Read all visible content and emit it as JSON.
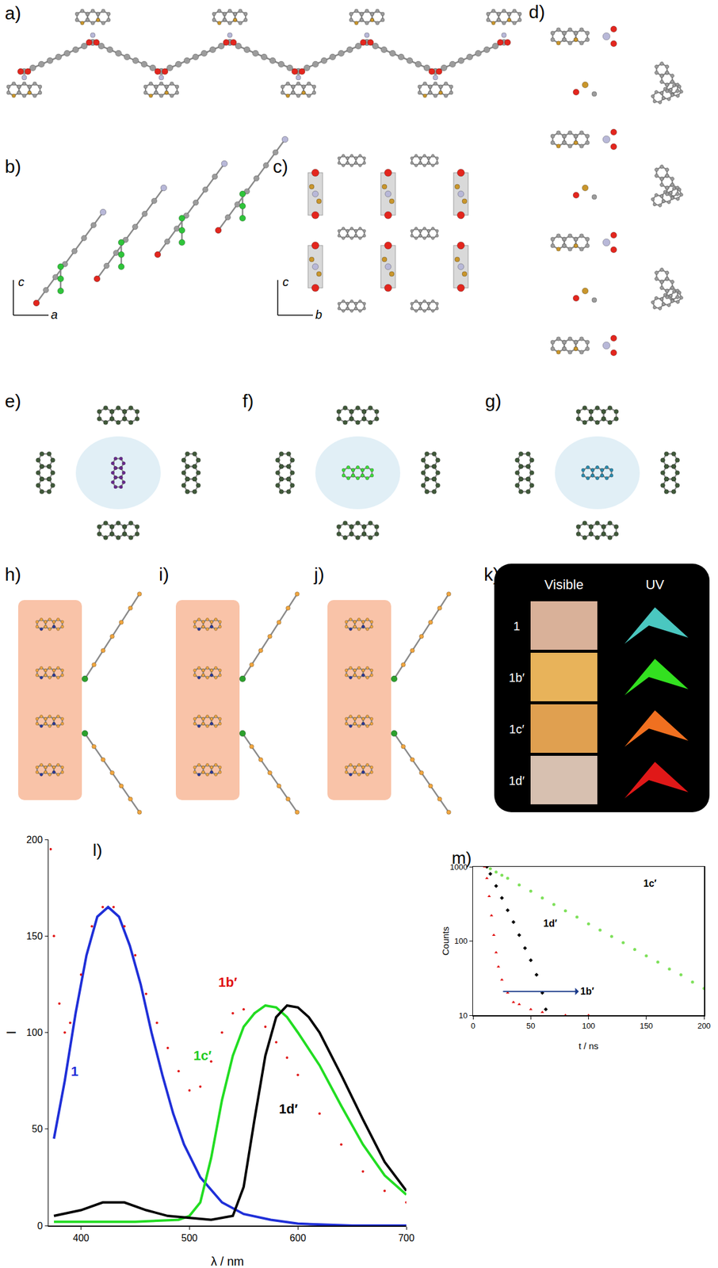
{
  "panels": {
    "labels": [
      "a)",
      "b)",
      "c)",
      "d)",
      "e)",
      "f)",
      "g)",
      "h)",
      "i)",
      "j)",
      "k)"
    ],
    "axes_b": [
      "c",
      "a"
    ],
    "axes_c": [
      "c",
      "b"
    ],
    "k": {
      "headers": [
        "Visible",
        "UV"
      ],
      "rows": [
        "1",
        "1b′",
        "1c′",
        "1d′"
      ]
    }
  },
  "chart_data": [
    {
      "type": "line",
      "title": "l)",
      "x_label": "λ / nm",
      "y_label": "I",
      "xlim": [
        370,
        700
      ],
      "xticks": [
        400,
        500,
        600,
        700
      ],
      "ylim": [
        0,
        200
      ],
      "yticks": [
        0,
        50,
        100,
        150,
        200
      ],
      "grid": false,
      "series": [
        {
          "name": "1",
          "color": "#1f2fd8",
          "line_style": "solid",
          "x": [
            375,
            385,
            395,
            405,
            415,
            425,
            435,
            445,
            455,
            465,
            475,
            485,
            495,
            510,
            530,
            550,
            575,
            600,
            650,
            700
          ],
          "values": [
            45,
            75,
            110,
            140,
            160,
            165,
            160,
            145,
            125,
            100,
            78,
            58,
            42,
            25,
            12,
            6,
            3,
            1,
            0,
            0
          ]
        },
        {
          "name": "1b′",
          "color": "#e01010",
          "marker": "circle",
          "x": [
            372,
            375,
            380,
            385,
            390,
            400,
            410,
            420,
            430,
            440,
            450,
            460,
            470,
            480,
            490,
            500,
            510,
            520,
            530,
            540,
            550,
            560,
            570,
            580,
            590,
            600,
            620,
            640,
            660,
            680,
            700
          ],
          "values": [
            195,
            150,
            115,
            100,
            105,
            130,
            155,
            165,
            165,
            155,
            140,
            120,
            105,
            92,
            80,
            70,
            72,
            85,
            100,
            110,
            112,
            110,
            103,
            95,
            87,
            78,
            58,
            42,
            28,
            18,
            12
          ]
        },
        {
          "name": "1c′",
          "color": "#22dd22",
          "line_style": "solid",
          "x": [
            375,
            400,
            450,
            490,
            500,
            510,
            520,
            530,
            540,
            550,
            560,
            570,
            580,
            590,
            600,
            620,
            640,
            660,
            680,
            700
          ],
          "values": [
            2,
            2,
            2,
            3,
            5,
            12,
            35,
            65,
            88,
            103,
            110,
            114,
            113,
            108,
            100,
            83,
            62,
            42,
            26,
            16
          ]
        },
        {
          "name": "1d′",
          "color": "#000000",
          "line_style": "solid",
          "x": [
            375,
            400,
            420,
            440,
            460,
            480,
            500,
            520,
            540,
            550,
            560,
            570,
            580,
            590,
            600,
            610,
            620,
            640,
            660,
            680,
            700
          ],
          "values": [
            5,
            8,
            12,
            12,
            8,
            5,
            4,
            3,
            5,
            20,
            55,
            88,
            108,
            114,
            113,
            108,
            100,
            78,
            55,
            33,
            18
          ]
        }
      ]
    },
    {
      "type": "scatter",
      "title": "m)",
      "x_label": "t / ns",
      "y_label": "Counts",
      "log": "y",
      "xlim": [
        0,
        200
      ],
      "xticks": [
        0,
        50,
        100,
        150,
        200
      ],
      "ylim": [
        10,
        1000
      ],
      "yticks": [
        10,
        100,
        1000
      ],
      "grid": false,
      "series": [
        {
          "name": "1c′",
          "color": "#7ee05a",
          "marker": "circle",
          "x": [
            12,
            15,
            20,
            25,
            30,
            40,
            50,
            60,
            70,
            80,
            90,
            100,
            110,
            120,
            130,
            140,
            150,
            160,
            170,
            180,
            190,
            200
          ],
          "values": [
            1000,
            940,
            850,
            770,
            700,
            570,
            470,
            380,
            310,
            255,
            210,
            170,
            140,
            115,
            95,
            77,
            63,
            52,
            42,
            35,
            28,
            23
          ]
        },
        {
          "name": "1d′",
          "color": "#000000",
          "marker": "diamond",
          "x": [
            12,
            15,
            20,
            25,
            30,
            35,
            40,
            45,
            50,
            55,
            60,
            63
          ],
          "values": [
            1000,
            800,
            550,
            380,
            260,
            180,
            120,
            80,
            55,
            35,
            20,
            12
          ]
        },
        {
          "name": "1b′",
          "color": "#e01010",
          "marker": "triangle-up",
          "x": [
            10,
            12,
            14,
            16,
            18,
            20,
            22,
            25,
            30,
            35,
            40,
            50,
            60,
            80,
            100
          ],
          "values": [
            1000,
            700,
            400,
            220,
            120,
            70,
            45,
            30,
            20,
            15,
            14,
            12,
            11,
            10,
            10
          ]
        }
      ]
    }
  ]
}
